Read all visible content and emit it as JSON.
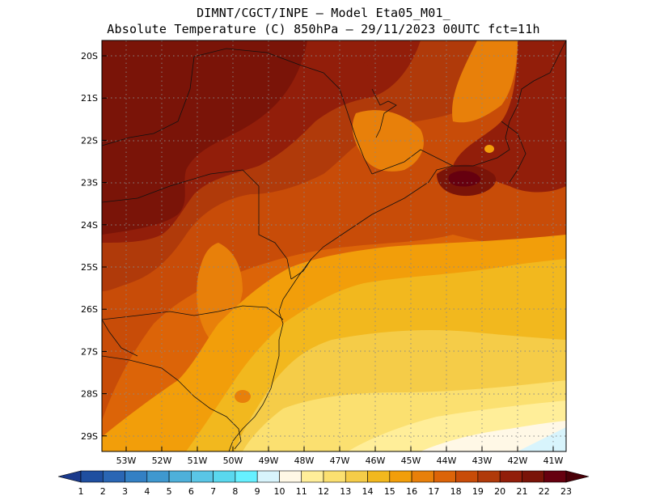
{
  "title": {
    "line1": "DIMNT/CGCT/INPE –  Model Eta05_M01_",
    "line2": "Absolute Temperature (C) 850hPa –  29/11/2023 00UTC fct=11h"
  },
  "axes": {
    "lat_labels": [
      "20S",
      "21S",
      "22S",
      "23S",
      "24S",
      "25S",
      "26S",
      "27S",
      "28S",
      "29S"
    ],
    "lon_labels": [
      "53W",
      "52W",
      "51W",
      "50W",
      "49W",
      "48W",
      "47W",
      "46W",
      "45W",
      "44W",
      "43W",
      "42W",
      "41W"
    ]
  },
  "colorbar": {
    "labels": [
      "1",
      "2",
      "3",
      "4",
      "5",
      "6",
      "7",
      "8",
      "9",
      "10",
      "11",
      "12",
      "13",
      "14",
      "15",
      "16",
      "17",
      "18",
      "19",
      "20",
      "21",
      "22",
      "23"
    ],
    "colors": [
      "#1a3a8c",
      "#1f4fa0",
      "#2a66b4",
      "#3380c4",
      "#3f98cf",
      "#4eb0da",
      "#5ac6e6",
      "#5ad8ee",
      "#66f0ff",
      "#d8f4fc",
      "#fff8e6",
      "#ffee99",
      "#fbe070",
      "#f5cc48",
      "#f2b81e",
      "#f29e0a",
      "#e8800a",
      "#dc6408",
      "#c84c08",
      "#b03a0a",
      "#921e0a",
      "#7a1408",
      "#66000f",
      "#4a0008"
    ]
  },
  "regions": [
    {
      "name": "hot-west",
      "color": "#7a1408"
    },
    {
      "name": "hot-north",
      "color": "#921e0a"
    },
    {
      "name": "warm-mid",
      "color": "#b03a0a"
    },
    {
      "name": "warm-orange",
      "color": "#c84c08"
    },
    {
      "name": "orange",
      "color": "#dc6408"
    },
    {
      "name": "light-orange",
      "color": "#e8800a"
    },
    {
      "name": "amber",
      "color": "#f29e0a"
    },
    {
      "name": "gold",
      "color": "#f2b81e"
    },
    {
      "name": "yellow",
      "color": "#f5cc48"
    },
    {
      "name": "light-yellow",
      "color": "#fbe070"
    },
    {
      "name": "pale-yellow",
      "color": "#ffee99"
    },
    {
      "name": "cream",
      "color": "#fff8e6"
    },
    {
      "name": "ice",
      "color": "#d8f4fc"
    }
  ]
}
